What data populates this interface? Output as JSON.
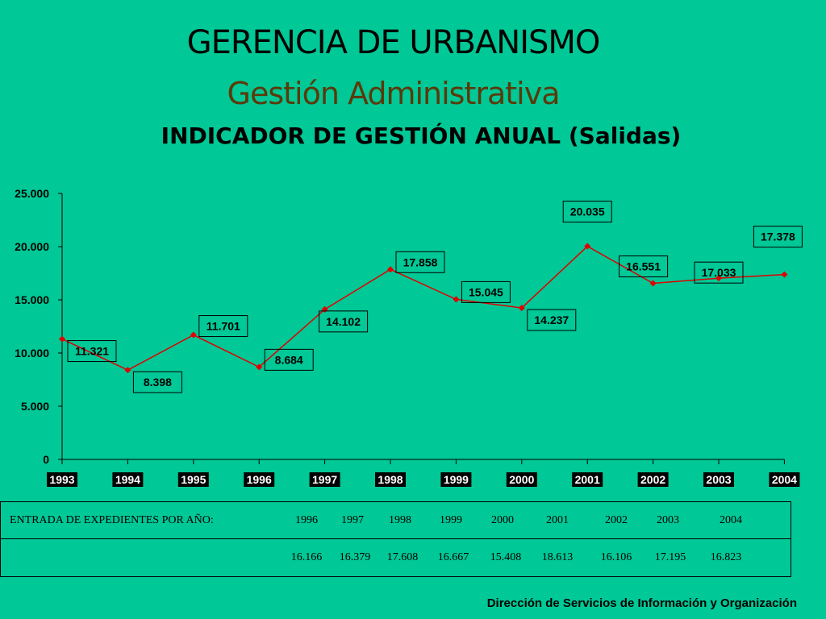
{
  "header": {
    "title": "GERENCIA DE URBANISMO",
    "subtitle": "Gestión Administrativa",
    "indicator_title": "INDICADOR DE GESTIÓN ANUAL (Salidas)"
  },
  "chart_data": {
    "type": "line",
    "title": "INDICADOR DE GESTIÓN ANUAL (Salidas)",
    "xlabel": "",
    "ylabel": "",
    "categories": [
      "1993",
      "1994",
      "1995",
      "1996",
      "1997",
      "1998",
      "1999",
      "2000",
      "2001",
      "2002",
      "2003",
      "2004"
    ],
    "series": [
      {
        "values": [
          11321,
          8398,
          11701,
          8684,
          14102,
          17858,
          15045,
          14237,
          20035,
          16551,
          17033,
          17378
        ],
        "labels": [
          "11.321",
          "8.398",
          "11.701",
          "8.684",
          "14.102",
          "17.858",
          "15.045",
          "14.237",
          "20.035",
          "16.551",
          "17.033",
          "17.378"
        ],
        "color": "#E00000"
      }
    ],
    "ylim": [
      0,
      25000
    ],
    "yticks": [
      0,
      5000,
      10000,
      15000,
      20000,
      25000
    ],
    "ytick_labels": [
      "0",
      "5.000",
      "10.000",
      "15.000",
      "20.000",
      "25.000"
    ],
    "grid": false,
    "legend": "none"
  },
  "entries": {
    "label": "ENTRADA DE EXPEDIENTES POR AÑO:",
    "years": [
      "1996",
      "1997",
      "1998",
      "1999",
      "2000",
      "2001",
      "2002",
      "2003",
      "2004"
    ],
    "values": [
      "16.166",
      "16.379",
      "17.608",
      "16.667",
      "15.408",
      "18.613",
      "16.106",
      "17.195",
      "16.823"
    ]
  },
  "footer": "Dirección de Servicios de  Información y Organización"
}
